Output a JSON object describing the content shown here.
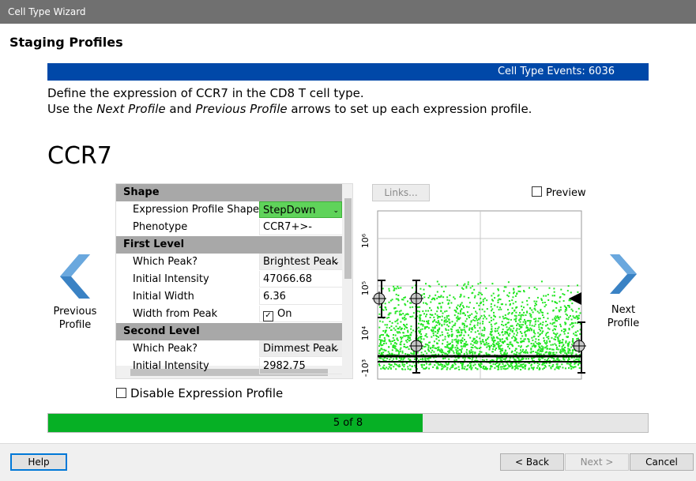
{
  "window": {
    "title": "Cell Type Wizard"
  },
  "header": {
    "title": "Staging Profiles"
  },
  "banner": {
    "text": "Cell Type Events: 6036"
  },
  "instructions": {
    "line1": "Define the expression of CCR7 in the CD8 T cell type.",
    "line2": [
      {
        "text": "Use the ",
        "italic": false
      },
      {
        "text": "Next Profile",
        "italic": true
      },
      {
        "text": " and ",
        "italic": false
      },
      {
        "text": "Previous Profile",
        "italic": true
      },
      {
        "text": " arrows to set up each expression profile.",
        "italic": false
      }
    ]
  },
  "marker": "CCR7",
  "property_grid": {
    "sections": [
      {
        "title": "Shape",
        "rows": [
          {
            "label": "Expression Profile Shape",
            "value": "StepDown",
            "control": "dropdown",
            "highlight": true
          },
          {
            "label": "Phenotype",
            "value": "CCR7+>-",
            "control": "text"
          }
        ]
      },
      {
        "title": "First Level",
        "rows": [
          {
            "label": "Which Peak?",
            "value": "Brightest Peak",
            "control": "dropdown"
          },
          {
            "label": "Initial Intensity",
            "value": "47066.68",
            "control": "text"
          },
          {
            "label": "Initial Width",
            "value": "6.36",
            "control": "text"
          },
          {
            "label": "Width from Peak",
            "value": "On",
            "control": "checkbox"
          }
        ]
      },
      {
        "title": "Second Level",
        "rows": [
          {
            "label": "Which Peak?",
            "value": "Dimmest Peak",
            "control": "dropdown"
          },
          {
            "label": "Initial Intensity",
            "value": "2982.75",
            "control": "text"
          }
        ]
      }
    ]
  },
  "links_button": "Links...",
  "preview": "Preview",
  "plot": {
    "y_axis_labels": [
      "10⁶",
      "10⁵",
      "10⁴",
      "-10³"
    ]
  },
  "previous_profile": [
    "Previous",
    "Profile"
  ],
  "next_profile": [
    "Next",
    "Profile"
  ],
  "disable_checkbox": "Disable Expression Profile",
  "progress": {
    "label": "5 of 8",
    "current": 5,
    "total": 8
  },
  "buttons": {
    "help": "Help",
    "back": "< Back",
    "next": "Next >",
    "cancel": "Cancel"
  }
}
